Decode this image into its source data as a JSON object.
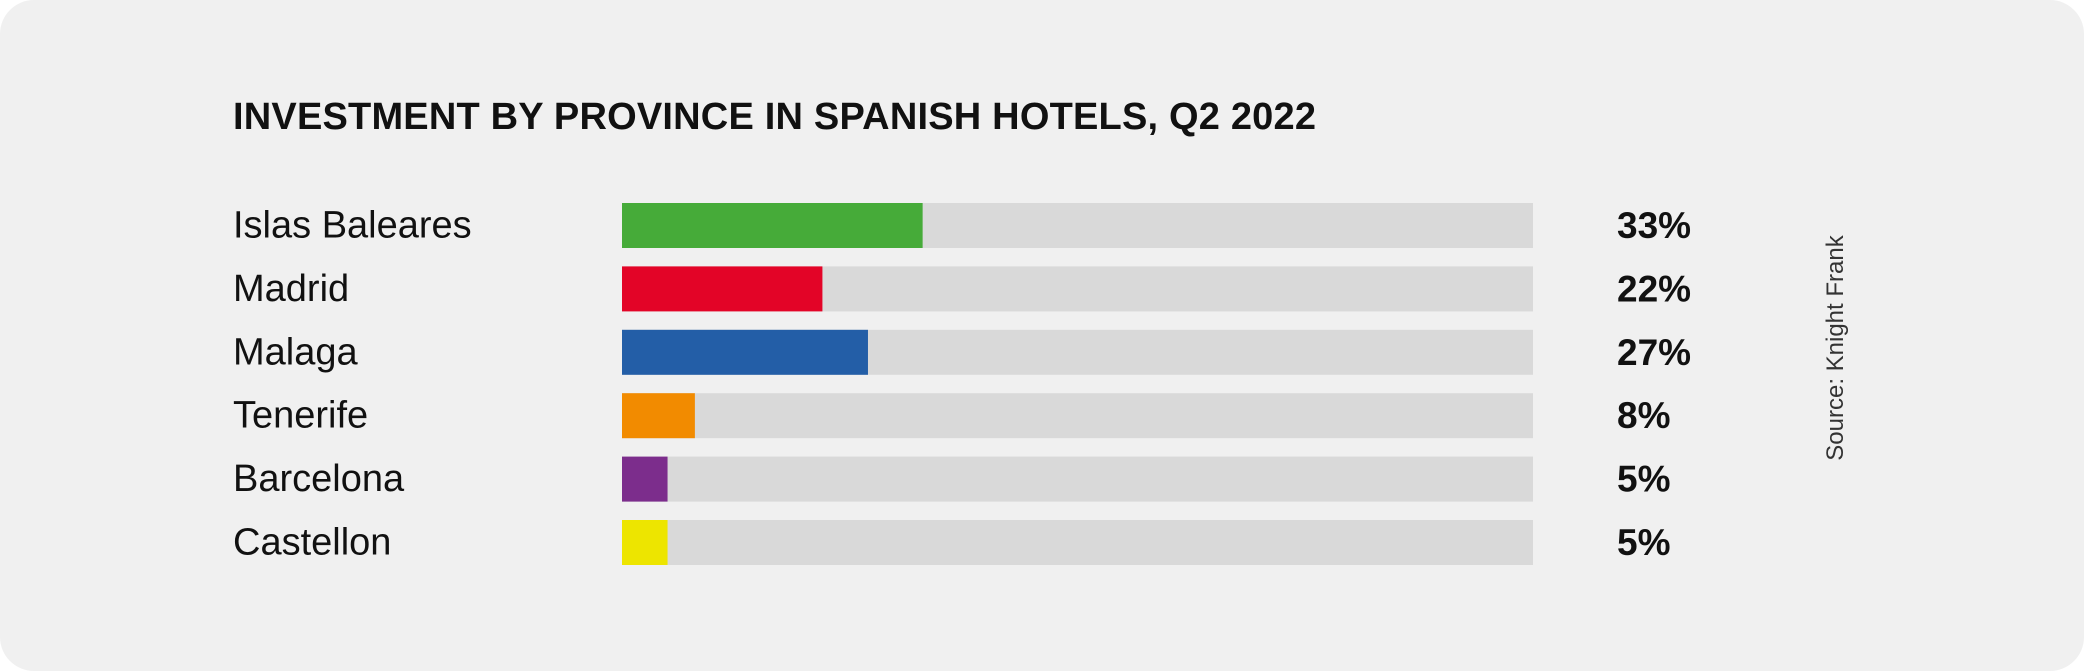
{
  "chart_data": {
    "type": "bar",
    "orientation": "horizontal",
    "title": "INVESTMENT BY PROVINCE IN SPANISH HOTELS, Q2 2022",
    "source": "Source: Knight Frank",
    "categories": [
      "Islas Baleares",
      "Madrid",
      "Malaga",
      "Tenerife",
      "Barcelona",
      "Castellon"
    ],
    "values": [
      33,
      22,
      27,
      8,
      5,
      5
    ],
    "value_labels": [
      "33%",
      "22%",
      "27%",
      "8%",
      "5%",
      "5%"
    ],
    "colors": [
      "#46ab39",
      "#e30427",
      "#235ea7",
      "#f28b00",
      "#7c2d8c",
      "#ede500"
    ],
    "track_color": "#d9d9d9",
    "xlim": [
      0,
      100
    ],
    "unit": "%",
    "grid": false,
    "legend": "none"
  }
}
